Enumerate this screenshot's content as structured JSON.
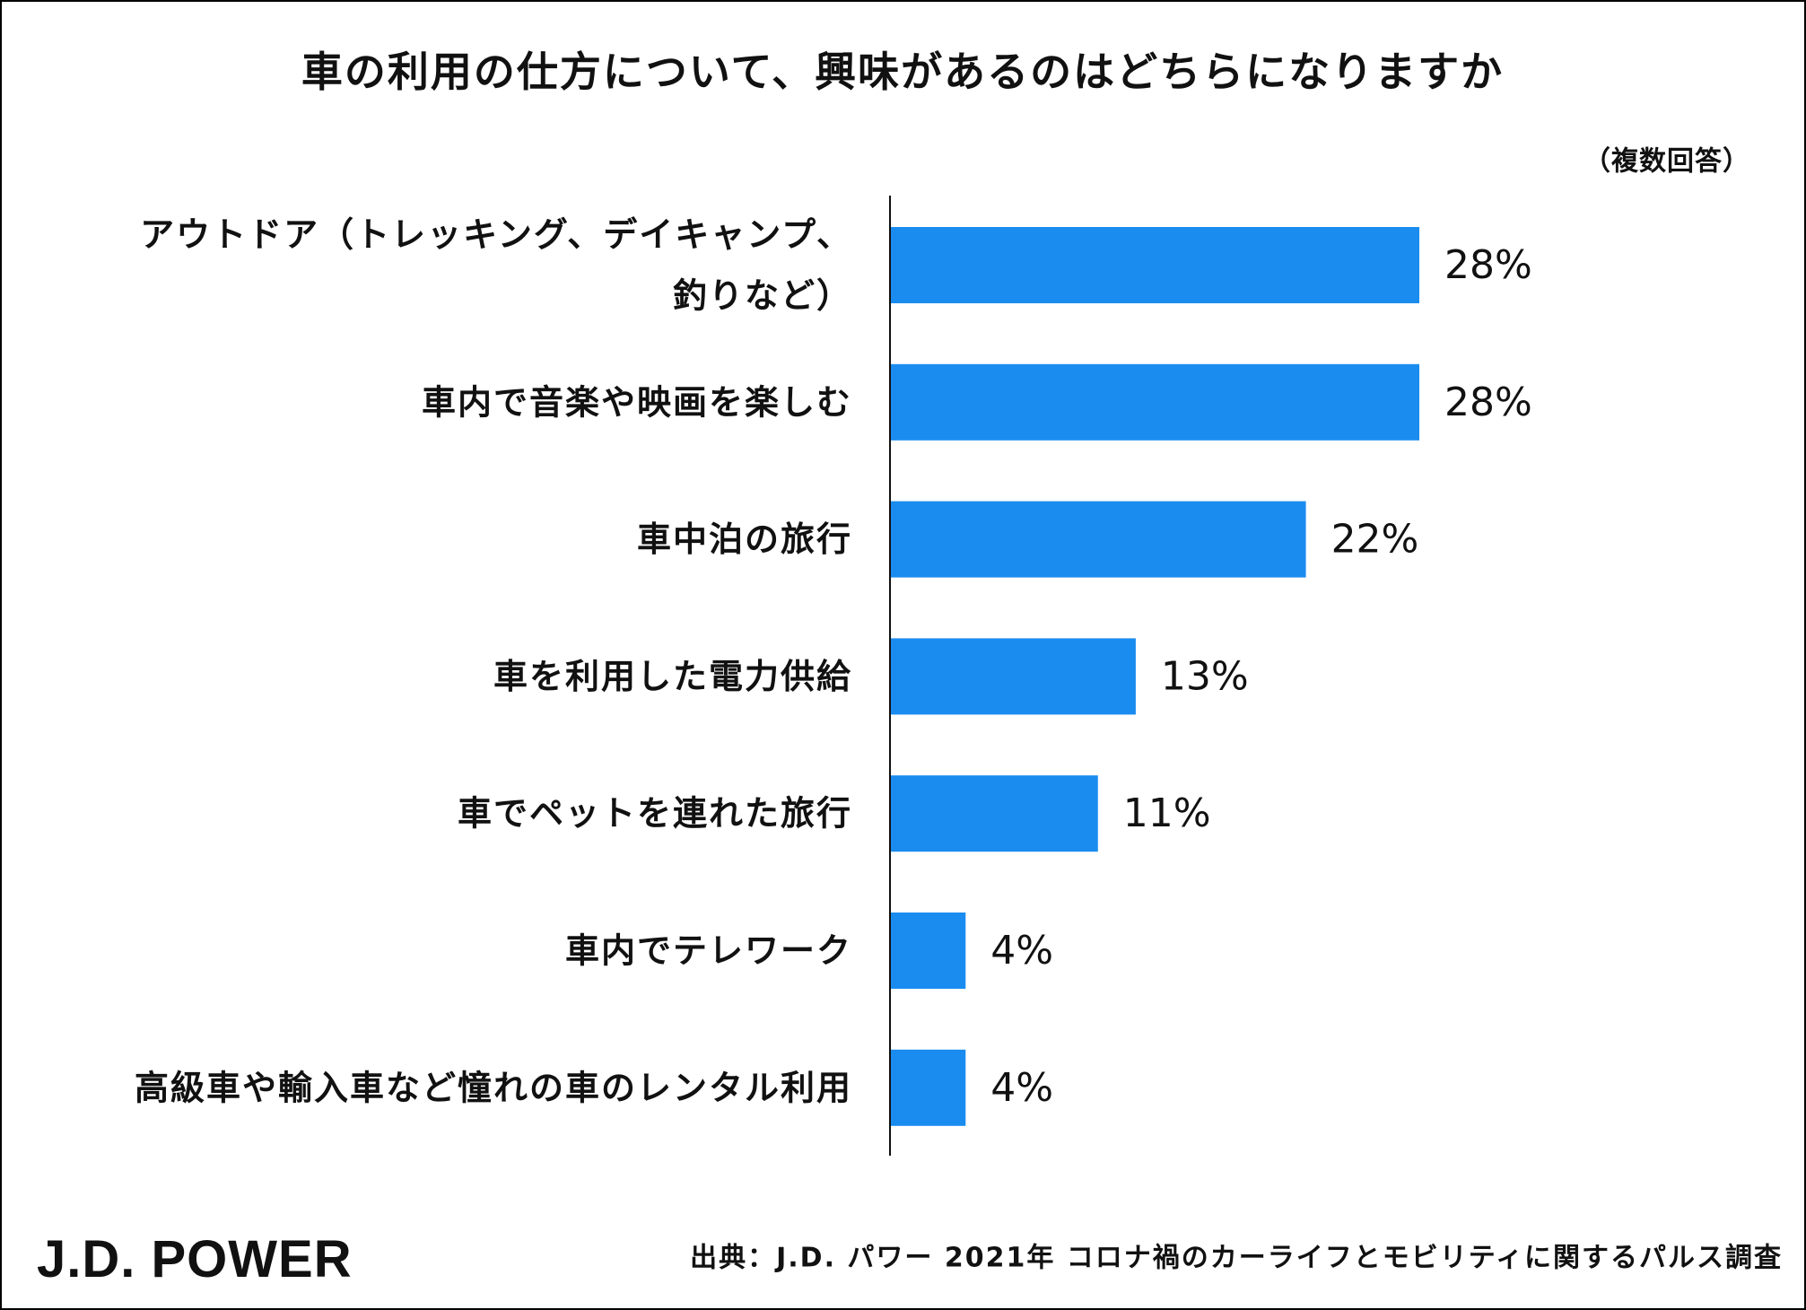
{
  "chart_data": {
    "type": "bar",
    "orientation": "horizontal",
    "title": "車の利用の仕方について、興味があるのはどちらになりますか",
    "note": "（複数回答）",
    "categories": [
      "アウトドア（トレッキング、デイキャンプ、\n釣りなど）",
      "車内で音楽や映画を楽しむ",
      "車中泊の旅行",
      "車を利用した電力供給",
      "車でペットを連れた旅行",
      "車内でテレワーク",
      "高級車や輸入車など憧れの車のレンタル利用"
    ],
    "values": [
      28,
      28,
      22,
      13,
      11,
      4,
      4
    ],
    "data_labels": [
      "28%",
      "28%",
      "22%",
      "13%",
      "11%",
      "4%",
      "4%"
    ],
    "bar_color": "#1a8cef",
    "grid": false,
    "legend": "none"
  },
  "footer": {
    "logo_text": "J.D. POWER",
    "logo_color": "#d4263b",
    "source": "出典：J.D. パワー 2021年 コロナ禍のカーライフとモビリティに関するパルス調査"
  }
}
